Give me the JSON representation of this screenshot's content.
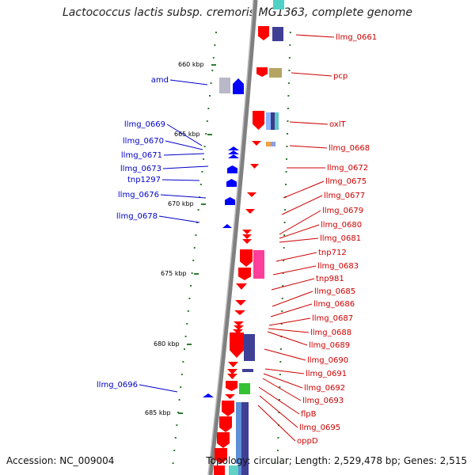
{
  "title": "Lactococcus lactis subsp. cremoris MG1363, complete genome",
  "footer": {
    "accession": "Accession: NC_009004",
    "stats": "Topology: circular; Length: 2,529,478 bp; Genes: 2,515"
  },
  "colors": {
    "forward_label": "#0000c8",
    "reverse_label": "#cc0000",
    "forward_gene": "#0000ff",
    "reverse_gene": "#ff0000",
    "tick": "#2e7d32",
    "backbone": "#808080"
  },
  "kbp_labels": [
    "660 kbp",
    "665 kbp",
    "670 kbp",
    "675 kbp",
    "680 kbp",
    "685 kbp"
  ],
  "forward_labels": [
    "amd",
    "llmg_0669",
    "llmg_0670",
    "llmg_0671",
    "llmg_0673",
    "tnp1297",
    "llmg_0676",
    "llmg_0678",
    "llmg_0696"
  ],
  "reverse_labels": [
    "llmg_0661",
    "pcp",
    "oxlT",
    "llmg_0668",
    "llmg_0672",
    "llmg_0675",
    "llmg_0677",
    "llmg_0679",
    "llmg_0680",
    "llmg_0681",
    "tnp712",
    "llmg_0683",
    "tnp981",
    "llmg_0685",
    "llmg_0686",
    "llmg_0687",
    "llmg_0688",
    "llmg_0689",
    "llmg_0690",
    "llmg_0691",
    "llmg_0692",
    "llmg_0693",
    "flpB",
    "llmg_0695",
    "oppD"
  ]
}
